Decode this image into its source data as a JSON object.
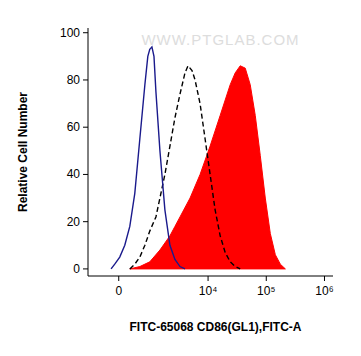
{
  "chart_data": {
    "type": "histogram_overlay",
    "watermark": "WWW.PTGLAB.COM",
    "x_label": "FITC-65068 CD86(GL1),FITC-A",
    "y_label": "Relative Cell Number",
    "xlim": [
      -900,
      1400000
    ],
    "ylim": [
      -3,
      102
    ],
    "xticks": [
      0,
      {
        "value": 10000,
        "label": "10⁴"
      },
      {
        "value": 100000,
        "label": "10⁵"
      },
      {
        "value": 1000000,
        "label": "10⁶"
      }
    ],
    "yticks": [
      0,
      20,
      40,
      60,
      80,
      100
    ],
    "grid": false,
    "series": [
      {
        "type": "area",
        "color": "#ff0000",
        "line_style": "solid",
        "x": [
          264,
          546,
          912,
          1433,
          2176,
          2668,
          3270,
          4891,
          7283,
          10840,
          16150,
          24000,
          29250,
          35700,
          43550,
          53000,
          64700,
          78900,
          96200,
          117300,
          143100,
          174400,
          212800
        ],
        "values": [
          0,
          1,
          3,
          8,
          14,
          18,
          22,
          30,
          40,
          52,
          65,
          78,
          83,
          86,
          85,
          78,
          65,
          48,
          30,
          15,
          6,
          2,
          0
        ]
      },
      {
        "type": "line",
        "color": "#000000",
        "line_style": "dashed",
        "x": [
          264,
          397,
          546,
          718,
          912,
          1205,
          1433,
          1767,
          2176,
          2668,
          3270,
          3996,
          4510,
          5290,
          5967,
          7283,
          8892,
          10840,
          13220,
          16150,
          19680,
          24000,
          29250,
          35700
        ],
        "values": [
          0,
          2,
          5,
          10,
          16,
          22,
          30,
          40,
          52,
          64,
          74,
          83,
          86,
          84,
          80,
          70,
          55,
          40,
          25,
          14,
          7,
          3,
          1,
          0
        ]
      },
      {
        "type": "line",
        "color": "#1a1a8c",
        "line_style": "solid",
        "x": [
          -180,
          -93,
          23,
          141,
          264,
          397,
          546,
          718,
          831,
          912,
          1008,
          1106,
          1205,
          1433,
          1767,
          2176,
          2668,
          3270,
          3996
        ],
        "values": [
          0,
          2,
          5,
          10,
          18,
          32,
          55,
          78,
          90,
          93,
          94,
          90,
          75,
          50,
          25,
          10,
          4,
          1,
          0
        ]
      }
    ]
  }
}
